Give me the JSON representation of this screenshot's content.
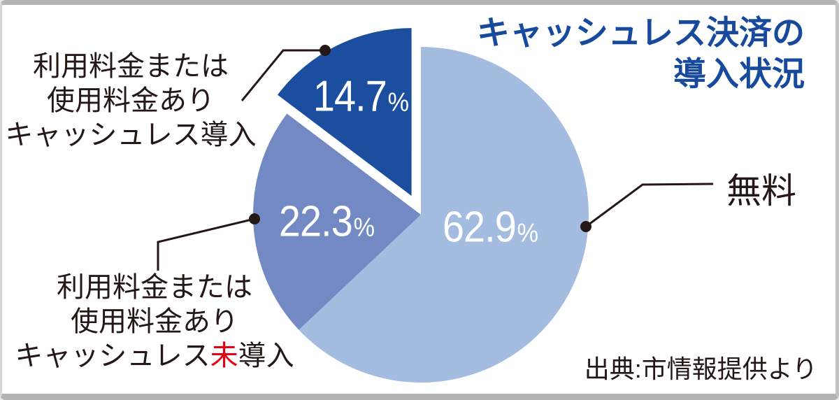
{
  "title": {
    "line1": "キャッシュレス決済の",
    "line2": "導入状況",
    "color": "#17499c"
  },
  "source": {
    "text": "出典:市情報提供より"
  },
  "annotations": {
    "label_free": "無料",
    "label_paid_introduced": {
      "line1": "利用料金または",
      "line2": "使用料金あり",
      "line3": "キャッシュレス導入"
    },
    "label_paid_not_introduced": {
      "line1": "利用料金または",
      "line2": "使用料金あり",
      "line3_prefix": "キャッシュレス",
      "line3_highlight": "未",
      "line3_suffix": "導入",
      "highlight_color": "#e50012"
    }
  },
  "chart_data": {
    "type": "pie",
    "title": "キャッシュレス決済の導入状況",
    "unit": "%",
    "start_angle": "12-oclock",
    "direction": "clockwise",
    "legend_position": "callout-labels",
    "slices": [
      {
        "label": "無料",
        "value": 62.9,
        "color": "#a5bce1",
        "explode": 0
      },
      {
        "label": "利用料金または使用料金あり キャッシュレス未導入",
        "value": 22.3,
        "color": "#7289c4",
        "explode": 0
      },
      {
        "label": "利用料金または使用料金あり キャッシュレス導入",
        "value": 14.7,
        "color": "#1b4e9e",
        "explode": 30
      }
    ]
  }
}
